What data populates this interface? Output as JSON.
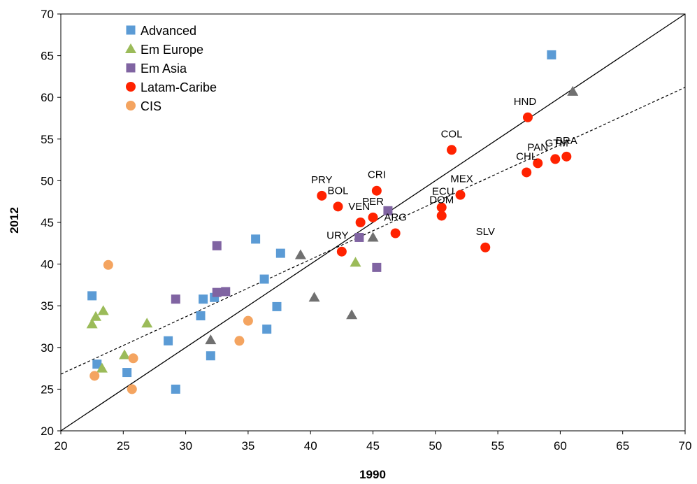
{
  "chart_data": {
    "type": "scatter",
    "xlabel": "1990",
    "ylabel": "2012",
    "xlim": [
      20,
      70
    ],
    "ylim": [
      20,
      70
    ],
    "xticks": [
      20,
      25,
      30,
      35,
      40,
      45,
      50,
      55,
      60,
      65,
      70
    ],
    "yticks": [
      20,
      25,
      30,
      35,
      40,
      45,
      50,
      55,
      60,
      65,
      70
    ],
    "grid": false,
    "legend_position": "top-left",
    "series": [
      {
        "name": "Advanced",
        "marker": "square",
        "color": "#5B9BD5",
        "points": [
          {
            "x": 22.5,
            "y": 36.2
          },
          {
            "x": 22.9,
            "y": 28.0
          },
          {
            "x": 25.3,
            "y": 27.0
          },
          {
            "x": 28.6,
            "y": 30.8
          },
          {
            "x": 29.2,
            "y": 25.0
          },
          {
            "x": 31.2,
            "y": 33.8
          },
          {
            "x": 31.4,
            "y": 35.8
          },
          {
            "x": 32.0,
            "y": 29.0
          },
          {
            "x": 32.3,
            "y": 36.0
          },
          {
            "x": 35.6,
            "y": 43.0
          },
          {
            "x": 36.3,
            "y": 38.2
          },
          {
            "x": 36.5,
            "y": 32.2
          },
          {
            "x": 37.3,
            "y": 34.9
          },
          {
            "x": 37.6,
            "y": 41.3
          },
          {
            "x": 59.3,
            "y": 65.1
          }
        ]
      },
      {
        "name": "Em Europe",
        "marker": "triangle",
        "color": "#9BBB59",
        "points": [
          {
            "x": 22.5,
            "y": 32.8
          },
          {
            "x": 22.8,
            "y": 33.7
          },
          {
            "x": 23.4,
            "y": 34.4
          },
          {
            "x": 23.3,
            "y": 27.5
          },
          {
            "x": 25.1,
            "y": 29.1
          },
          {
            "x": 26.9,
            "y": 32.9
          },
          {
            "x": 43.6,
            "y": 40.2
          }
        ]
      },
      {
        "name": "Em Asia",
        "marker": "square",
        "color": "#8064A2",
        "points": [
          {
            "x": 29.2,
            "y": 35.8
          },
          {
            "x": 32.5,
            "y": 42.2
          },
          {
            "x": 32.5,
            "y": 36.6
          },
          {
            "x": 33.2,
            "y": 36.7
          },
          {
            "x": 43.9,
            "y": 43.2
          },
          {
            "x": 45.3,
            "y": 39.6
          },
          {
            "x": 46.2,
            "y": 46.4
          }
        ]
      },
      {
        "name": "Latam-Caribe",
        "marker": "circle",
        "color": "#FF2200",
        "points": [
          {
            "x": 40.9,
            "y": 48.2,
            "label": "PRY"
          },
          {
            "x": 42.2,
            "y": 46.9,
            "label": "BOL"
          },
          {
            "x": 44.0,
            "y": 45.0,
            "label": "VEN"
          },
          {
            "x": 45.0,
            "y": 45.6,
            "label": "PER"
          },
          {
            "x": 45.3,
            "y": 48.8,
            "label": "CRI"
          },
          {
            "x": 46.8,
            "y": 43.7,
            "label": "ARG"
          },
          {
            "x": 42.5,
            "y": 41.5,
            "label": "URY"
          },
          {
            "x": 50.5,
            "y": 46.8,
            "label": "ECU"
          },
          {
            "x": 50.5,
            "y": 45.8,
            "label": "DOM"
          },
          {
            "x": 51.3,
            "y": 53.7,
            "label": "COL"
          },
          {
            "x": 52.0,
            "y": 48.3,
            "label": "MEX"
          },
          {
            "x": 54.0,
            "y": 42.0,
            "label": "SLV"
          },
          {
            "x": 57.3,
            "y": 51.0,
            "label": "CHL"
          },
          {
            "x": 57.4,
            "y": 57.6,
            "label": "HND"
          },
          {
            "x": 58.2,
            "y": 52.1,
            "label": "PAN"
          },
          {
            "x": 59.6,
            "y": 52.6,
            "label": "GTM"
          },
          {
            "x": 60.5,
            "y": 52.9,
            "label": "BRA"
          }
        ]
      },
      {
        "name": "CIS",
        "marker": "circle",
        "color": "#F4A460",
        "points": [
          {
            "x": 22.7,
            "y": 26.6
          },
          {
            "x": 23.8,
            "y": 39.9
          },
          {
            "x": 25.8,
            "y": 28.7
          },
          {
            "x": 25.7,
            "y": 25.0
          },
          {
            "x": 34.3,
            "y": 30.8
          },
          {
            "x": 35.0,
            "y": 33.2
          }
        ]
      },
      {
        "name": "",
        "marker": "triangle",
        "color": "#707070",
        "points": [
          {
            "x": 32.0,
            "y": 30.9
          },
          {
            "x": 39.2,
            "y": 41.1
          },
          {
            "x": 40.3,
            "y": 36.0
          },
          {
            "x": 43.3,
            "y": 33.9
          },
          {
            "x": 45.0,
            "y": 43.2
          },
          {
            "x": 61.0,
            "y": 60.7
          }
        ]
      }
    ],
    "lines": [
      {
        "kind": "45-degree",
        "style": "solid",
        "from": [
          20,
          20
        ],
        "to": [
          70,
          70
        ]
      },
      {
        "kind": "trend",
        "style": "dashed",
        "from": [
          20,
          26.8
        ],
        "to": [
          70,
          61.2
        ]
      }
    ]
  }
}
